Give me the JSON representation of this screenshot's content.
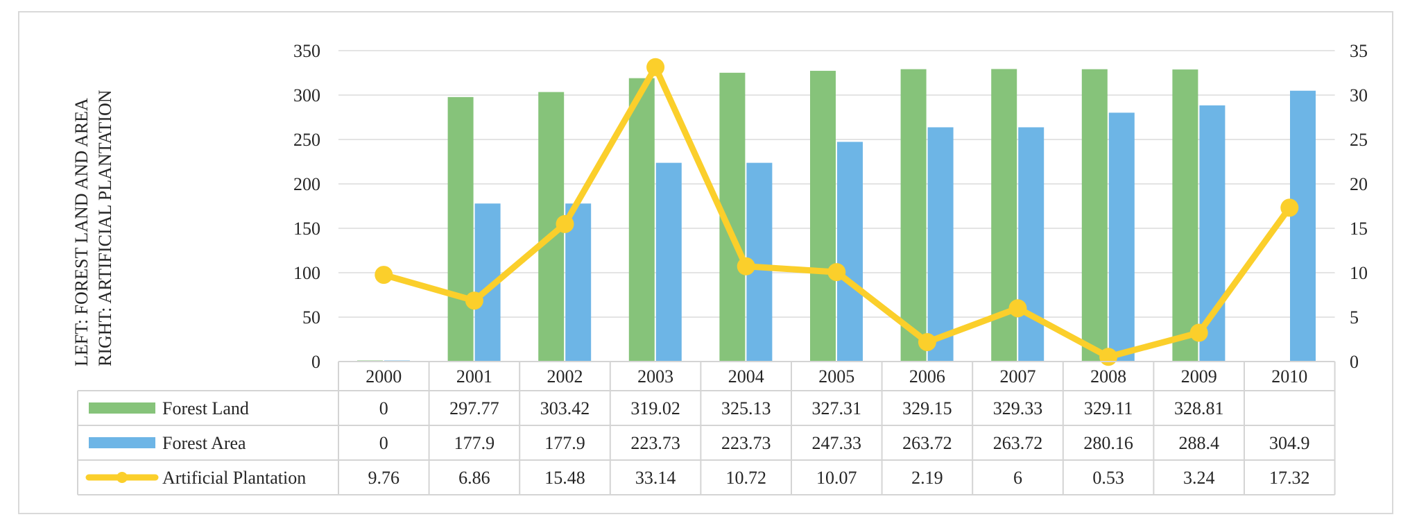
{
  "chart_data": {
    "type": "bar",
    "title": "",
    "ylabel": "LEFT: FOREST LAND AND AREA",
    "y2label": "RIGHT: ARTIFICIAL PLANTATION",
    "ylim": [
      0,
      350
    ],
    "y2lim": [
      0,
      35
    ],
    "yticks": [
      "0",
      "50",
      "100",
      "150",
      "200",
      "250",
      "300",
      "350"
    ],
    "y2ticks": [
      "0",
      "5",
      "10",
      "15",
      "20",
      "25",
      "30",
      "35"
    ],
    "categories": [
      "2000",
      "2001",
      "2002",
      "2003",
      "2004",
      "2005",
      "2006",
      "2007",
      "2008",
      "2009",
      "2010"
    ],
    "series": [
      {
        "name": "Forest Land",
        "kind": "bar",
        "axis": "left",
        "color": "#86c37a",
        "values": [
          0,
          297.77,
          303.42,
          319.02,
          325.13,
          327.31,
          329.15,
          329.33,
          329.11,
          328.81,
          null
        ],
        "labels": [
          "0",
          "297.77",
          "303.42",
          "319.02",
          "325.13",
          "327.31",
          "329.15",
          "329.33",
          "329.11",
          "328.81",
          ""
        ]
      },
      {
        "name": "Forest Area",
        "kind": "bar",
        "axis": "left",
        "color": "#6db5e6",
        "values": [
          0,
          177.9,
          177.9,
          223.73,
          223.73,
          247.33,
          263.72,
          263.72,
          280.16,
          288.4,
          304.9
        ],
        "labels": [
          "0",
          "177.9",
          "177.9",
          "223.73",
          "223.73",
          "247.33",
          "263.72",
          "263.72",
          "280.16",
          "288.4",
          "304.9"
        ]
      },
      {
        "name": "Artificial Plantation",
        "kind": "line",
        "axis": "right",
        "color": "#fbcf2b",
        "values": [
          9.76,
          6.86,
          15.48,
          33.14,
          10.72,
          10.07,
          2.19,
          6,
          0.53,
          3.24,
          17.32
        ],
        "labels": [
          "9.76",
          "6.86",
          "15.48",
          "33.14",
          "10.72",
          "10.07",
          "2.19",
          "6",
          "0.53",
          "3.24",
          "17.32"
        ]
      }
    ],
    "grid": true,
    "legend": "data-table"
  }
}
